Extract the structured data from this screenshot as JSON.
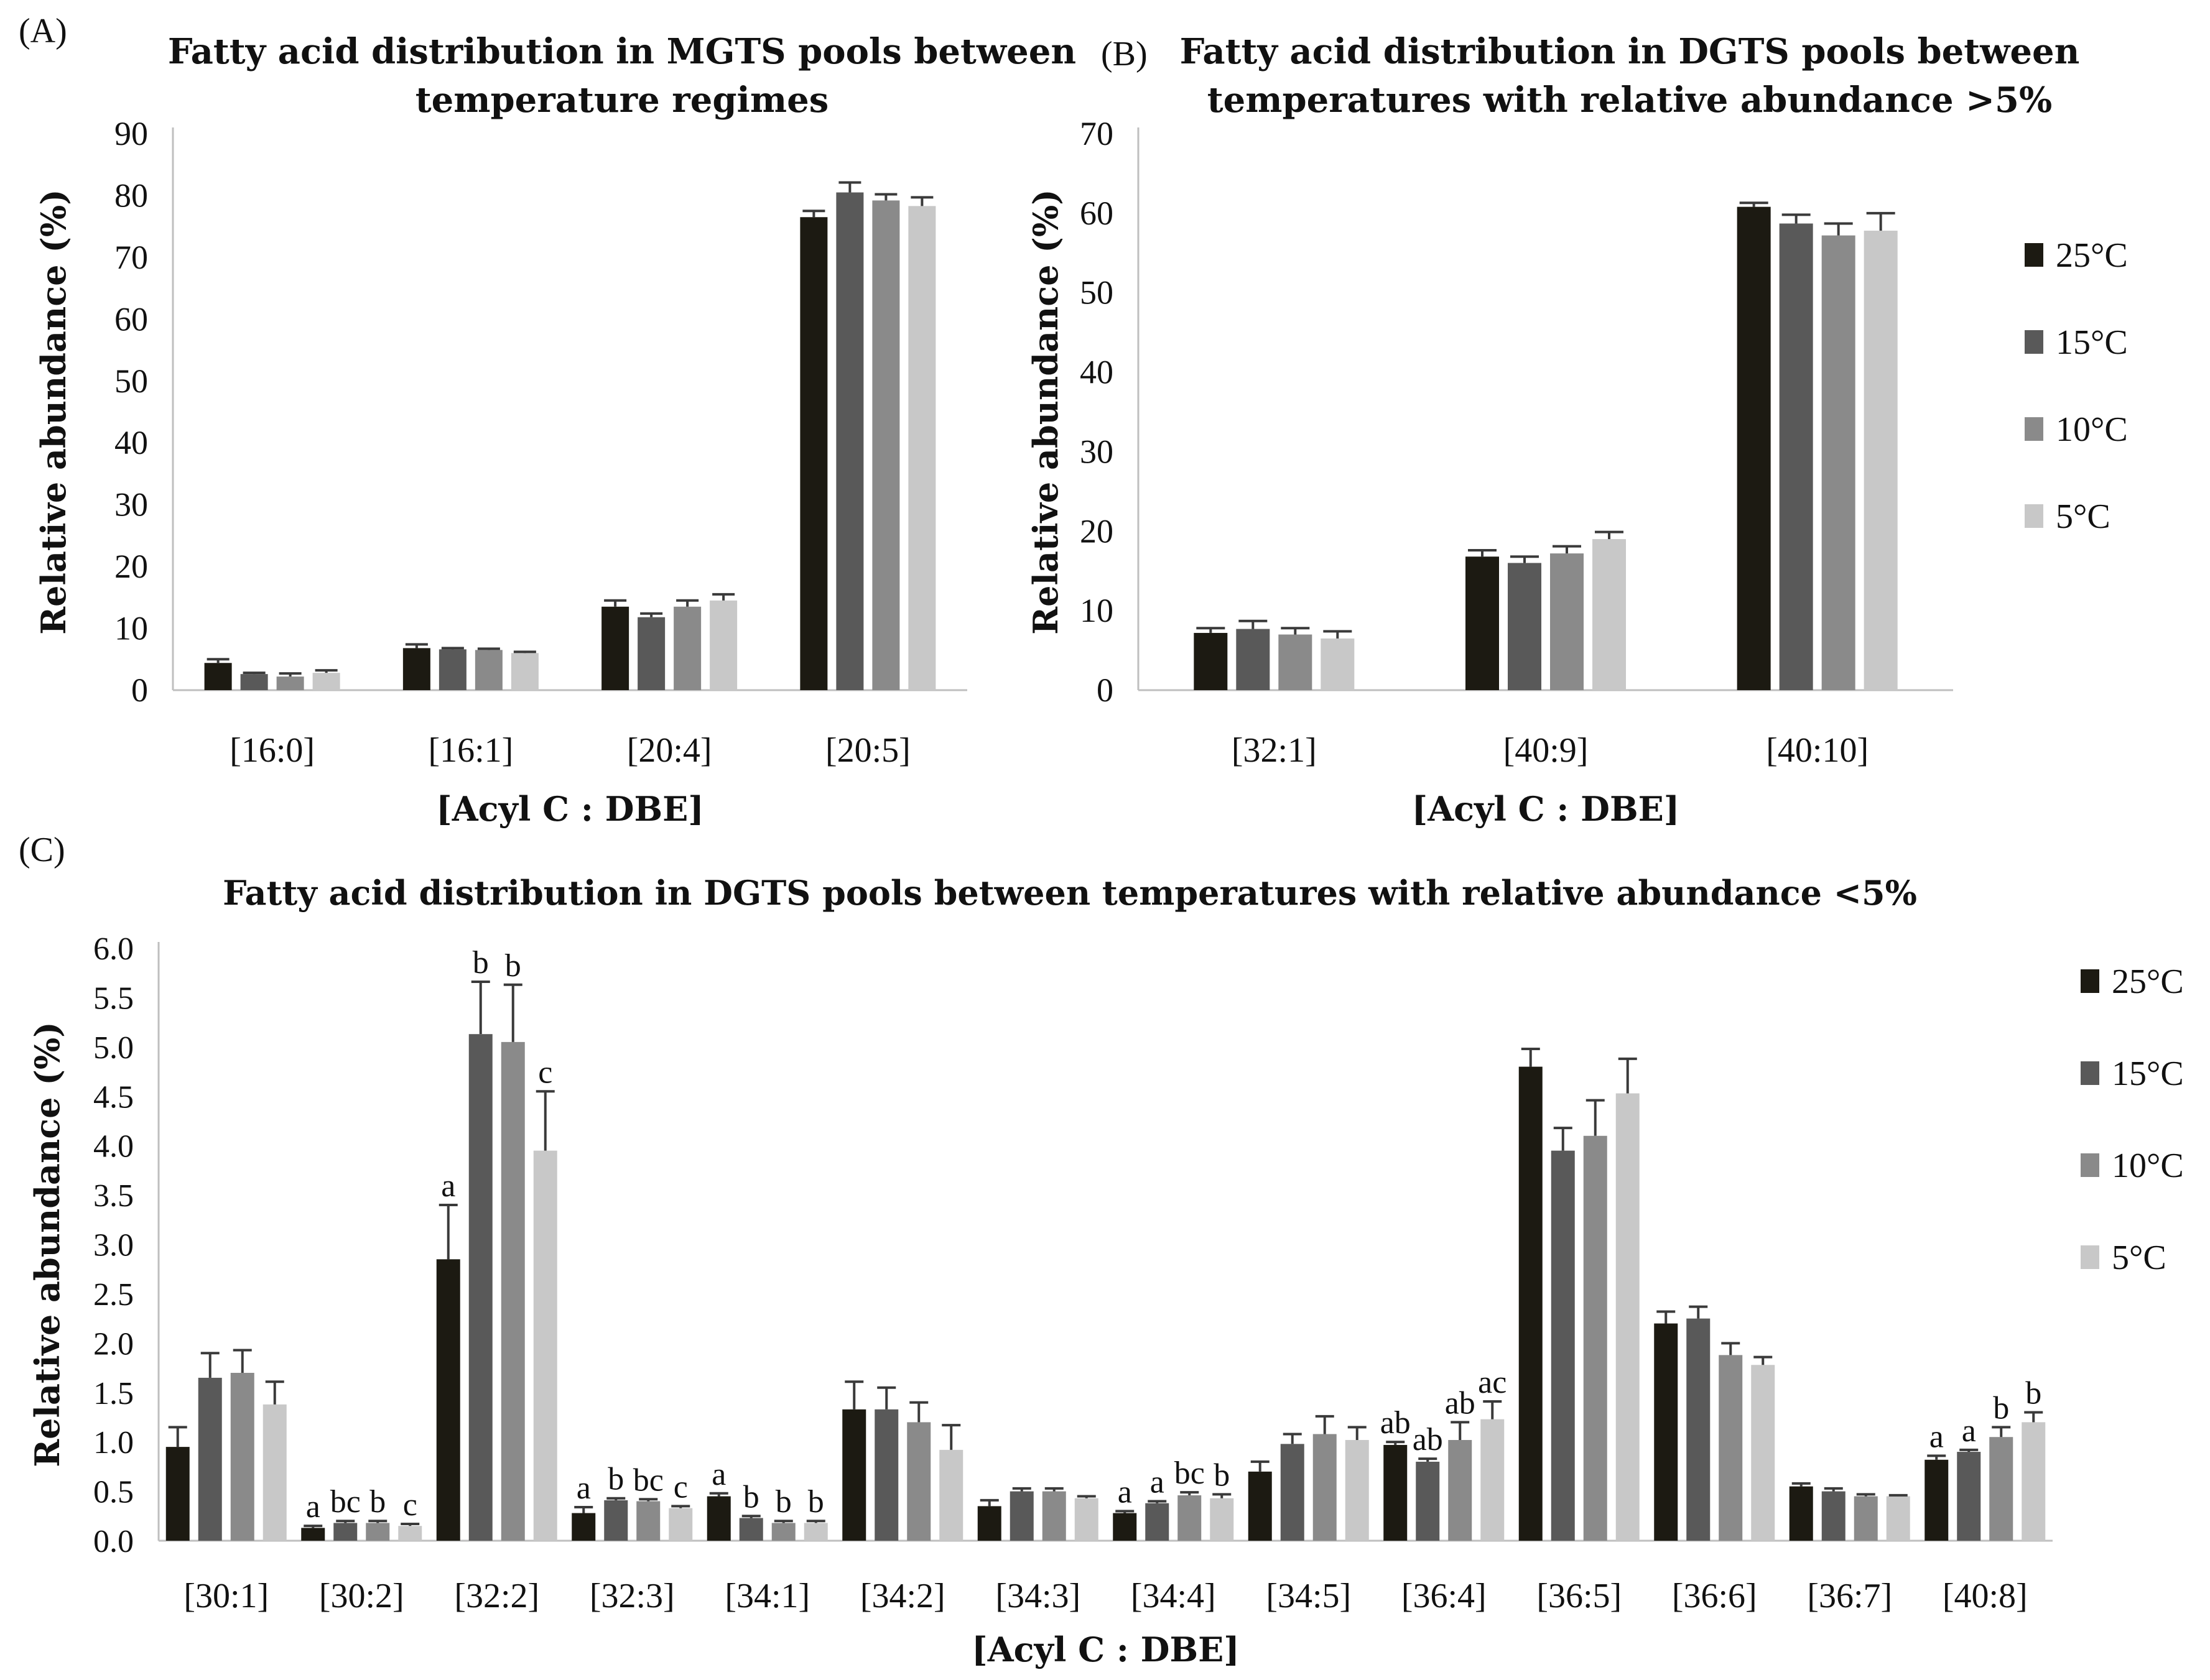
{
  "chart_data": [
    {
      "panel": "(A)",
      "type": "bar",
      "title_lines": [
        "Fatty acid distribution in MGTS pools between",
        "temperature regimes"
      ],
      "xlabel": "[Acyl C : DBE]",
      "ylabel": "Relative abundance (%)",
      "ylim": [
        0,
        90
      ],
      "yticks": [
        0,
        10,
        20,
        30,
        40,
        50,
        60,
        70,
        80,
        90
      ],
      "ytick_labels": [
        "0",
        "10",
        "20",
        "30",
        "40",
        "50",
        "60",
        "70",
        "80",
        "90"
      ],
      "categories": [
        "[16:0]",
        "[16:1]",
        "[20:4]",
        "[20:5]"
      ],
      "series": [
        {
          "name": "25°C",
          "color": "#1c1a12",
          "values": [
            4.4,
            6.8,
            13.5,
            76.5
          ],
          "errors": [
            0.6,
            0.6,
            1.0,
            1.0
          ],
          "labels": [
            "",
            "",
            "",
            ""
          ]
        },
        {
          "name": "15°C",
          "color": "#595959",
          "values": [
            2.6,
            6.6,
            11.8,
            80.5
          ],
          "errors": [
            0.2,
            0.2,
            0.6,
            1.6
          ],
          "labels": [
            "",
            "",
            "",
            ""
          ]
        },
        {
          "name": "10°C",
          "color": "#8a8a8a",
          "values": [
            2.2,
            6.5,
            13.5,
            79.2
          ],
          "errors": [
            0.5,
            0.2,
            1.0,
            1.0
          ],
          "labels": [
            "",
            "",
            "",
            ""
          ]
        },
        {
          "name": "5°C",
          "color": "#c8c8c8",
          "values": [
            2.8,
            6.0,
            14.5,
            78.3
          ],
          "errors": [
            0.4,
            0.2,
            1.0,
            1.4
          ],
          "labels": [
            "",
            "",
            "",
            ""
          ]
        }
      ],
      "legend": "none"
    },
    {
      "panel": "(B)",
      "type": "bar",
      "title_lines": [
        "Fatty acid distribution in DGTS pools between",
        "temperatures with relative abundance >5%"
      ],
      "xlabel": "[Acyl C : DBE]",
      "ylabel": "Relative abundance (%)",
      "ylim": [
        0,
        70
      ],
      "yticks": [
        0,
        10,
        20,
        30,
        40,
        50,
        60,
        70
      ],
      "ytick_labels": [
        "0",
        "10",
        "20",
        "30",
        "40",
        "50",
        "60",
        "70"
      ],
      "categories": [
        "[32:1]",
        "[40:9]",
        "[40:10]"
      ],
      "series": [
        {
          "name": "25°C",
          "color": "#1c1a12",
          "values": [
            7.2,
            16.8,
            60.8
          ],
          "errors": [
            0.6,
            0.8,
            0.5
          ],
          "labels": [
            "",
            "",
            ""
          ]
        },
        {
          "name": "15°C",
          "color": "#595959",
          "values": [
            7.7,
            16.0,
            58.7
          ],
          "errors": [
            1.0,
            0.8,
            1.1
          ],
          "labels": [
            "",
            "",
            ""
          ]
        },
        {
          "name": "10°C",
          "color": "#8a8a8a",
          "values": [
            7.0,
            17.2,
            57.2
          ],
          "errors": [
            0.8,
            0.9,
            1.5
          ],
          "labels": [
            "",
            "",
            ""
          ]
        },
        {
          "name": "5°C",
          "color": "#c8c8c8",
          "values": [
            6.5,
            19.0,
            57.8
          ],
          "errors": [
            0.9,
            0.9,
            2.2
          ],
          "labels": [
            "",
            "",
            ""
          ]
        }
      ],
      "legend": "right"
    },
    {
      "panel": "(C)",
      "type": "bar",
      "title_lines": [
        "Fatty acid distribution in DGTS pools between temperatures with relative abundance <5%"
      ],
      "xlabel": "[Acyl C : DBE]",
      "ylabel": "Relative abundance (%)",
      "ylim": [
        0,
        6
      ],
      "yticks": [
        0,
        0.5,
        1,
        1.5,
        2,
        2.5,
        3,
        3.5,
        4,
        4.5,
        5,
        5.5,
        6
      ],
      "ytick_labels": [
        "0.0",
        "0.5",
        "1.0",
        "1.5",
        "2.0",
        "2.5",
        "3.0",
        "3.5",
        "4.0",
        "4.5",
        "5.0",
        "5.5",
        "6.0"
      ],
      "categories": [
        "[30:1]",
        "[30:2]",
        "[32:2]",
        "[32:3]",
        "[34:1]",
        "[34:2]",
        "[34:3]",
        "[34:4]",
        "[34:5]",
        "[36:4]",
        "[36:5]",
        "[36:6]",
        "[36:7]",
        "[40:8]"
      ],
      "series": [
        {
          "name": "25°C",
          "color": "#1c1a12",
          "values": [
            0.95,
            0.13,
            2.85,
            0.28,
            0.45,
            1.33,
            0.35,
            0.28,
            0.7,
            0.97,
            4.8,
            2.2,
            0.55,
            0.82
          ],
          "errors": [
            0.2,
            0.02,
            0.55,
            0.06,
            0.03,
            0.28,
            0.06,
            0.02,
            0.1,
            0.03,
            0.18,
            0.12,
            0.03,
            0.04
          ],
          "labels": [
            "",
            "a",
            "a",
            "a",
            "a",
            "",
            "",
            "a",
            "",
            "ab",
            "",
            "",
            "",
            "a"
          ]
        },
        {
          "name": "15°C",
          "color": "#595959",
          "values": [
            1.65,
            0.18,
            5.13,
            0.41,
            0.23,
            1.33,
            0.5,
            0.38,
            0.98,
            0.8,
            3.95,
            2.25,
            0.5,
            0.9
          ],
          "errors": [
            0.25,
            0.02,
            0.53,
            0.02,
            0.02,
            0.22,
            0.03,
            0.02,
            0.1,
            0.03,
            0.23,
            0.12,
            0.03,
            0.02
          ],
          "labels": [
            "",
            "bc",
            "b",
            "b",
            "b",
            "",
            "",
            "a",
            "",
            "ab",
            "",
            "",
            "",
            "a"
          ]
        },
        {
          "name": "10°C",
          "color": "#8a8a8a",
          "values": [
            1.7,
            0.18,
            5.05,
            0.4,
            0.18,
            1.2,
            0.5,
            0.46,
            1.08,
            1.02,
            4.1,
            1.88,
            0.45,
            1.05
          ],
          "errors": [
            0.23,
            0.02,
            0.58,
            0.02,
            0.02,
            0.2,
            0.03,
            0.03,
            0.18,
            0.18,
            0.36,
            0.12,
            0.02,
            0.1
          ],
          "labels": [
            "",
            "b",
            "b",
            "bc",
            "b",
            "",
            "",
            "bc",
            "",
            "ab",
            "",
            "",
            "",
            "b"
          ]
        },
        {
          "name": "5°C",
          "color": "#c8c8c8",
          "values": [
            1.38,
            0.15,
            3.95,
            0.33,
            0.18,
            0.92,
            0.43,
            0.43,
            1.02,
            1.23,
            4.53,
            1.78,
            0.45,
            1.2
          ],
          "errors": [
            0.23,
            0.02,
            0.6,
            0.02,
            0.02,
            0.25,
            0.02,
            0.04,
            0.13,
            0.18,
            0.35,
            0.08,
            0.01,
            0.1
          ],
          "labels": [
            "",
            "c",
            "c",
            "c",
            "b",
            "",
            "",
            "b",
            "",
            "ac",
            "",
            "",
            "",
            "b"
          ]
        }
      ],
      "legend": "right"
    }
  ]
}
